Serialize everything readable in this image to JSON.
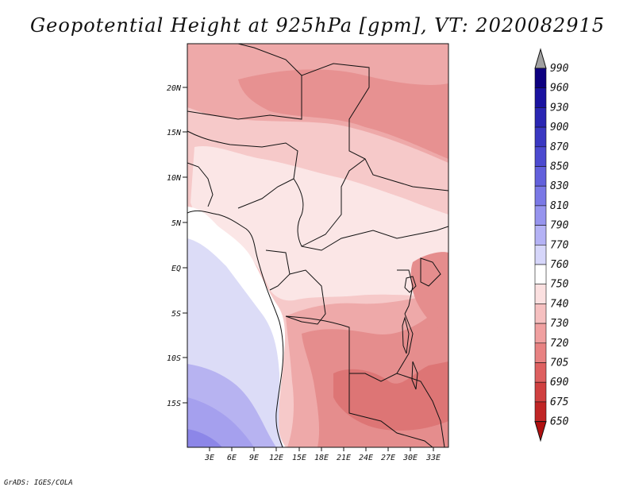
{
  "title": "Geopotential Height at 925hPa [gpm], VT: 2020082915",
  "footer": "GrADS: IGES/COLA",
  "map": {
    "variable": "Geopotential Height",
    "level": "925hPa",
    "units": "gpm",
    "valid_time": "2020082915",
    "lon_range": [
      0,
      35
    ],
    "lat_range": [
      -20,
      25
    ]
  },
  "axes": {
    "lat_ticks": [
      "20N",
      "15N",
      "10N",
      "5N",
      "EQ",
      "5S",
      "10S",
      "15S"
    ],
    "lon_ticks": [
      "3E",
      "6E",
      "9E",
      "12E",
      "15E",
      "18E",
      "21E",
      "24E",
      "27E",
      "30E",
      "33E"
    ]
  },
  "colorbar": {
    "levels": [
      "990",
      "960",
      "930",
      "900",
      "870",
      "850",
      "830",
      "810",
      "790",
      "770",
      "760",
      "750",
      "740",
      "730",
      "720",
      "705",
      "690",
      "675",
      "650"
    ],
    "colors": [
      "#0d0080",
      "#1a12a0",
      "#2a26b3",
      "#3a38c2",
      "#4c4ad0",
      "#6260dc",
      "#7a78e6",
      "#9694ee",
      "#b4b2f5",
      "#d6d6fa",
      "#ffffff",
      "#fbe0e0",
      "#f6c0c0",
      "#f0a0a0",
      "#e88282",
      "#de6060",
      "#d04040",
      "#c02525",
      "#b01010"
    ]
  },
  "field_colors": {
    "c790": "#b7b3f1",
    "c810": "#a5a0ee",
    "c830": "#8c86e8",
    "c770": "#dcdcf7",
    "c760": "#ffffff",
    "c750": "#fbe6e6",
    "c740": "#f6c9c9",
    "c730": "#eea9a9",
    "c720": "#e58d8d",
    "c705": "#db6f6f"
  }
}
